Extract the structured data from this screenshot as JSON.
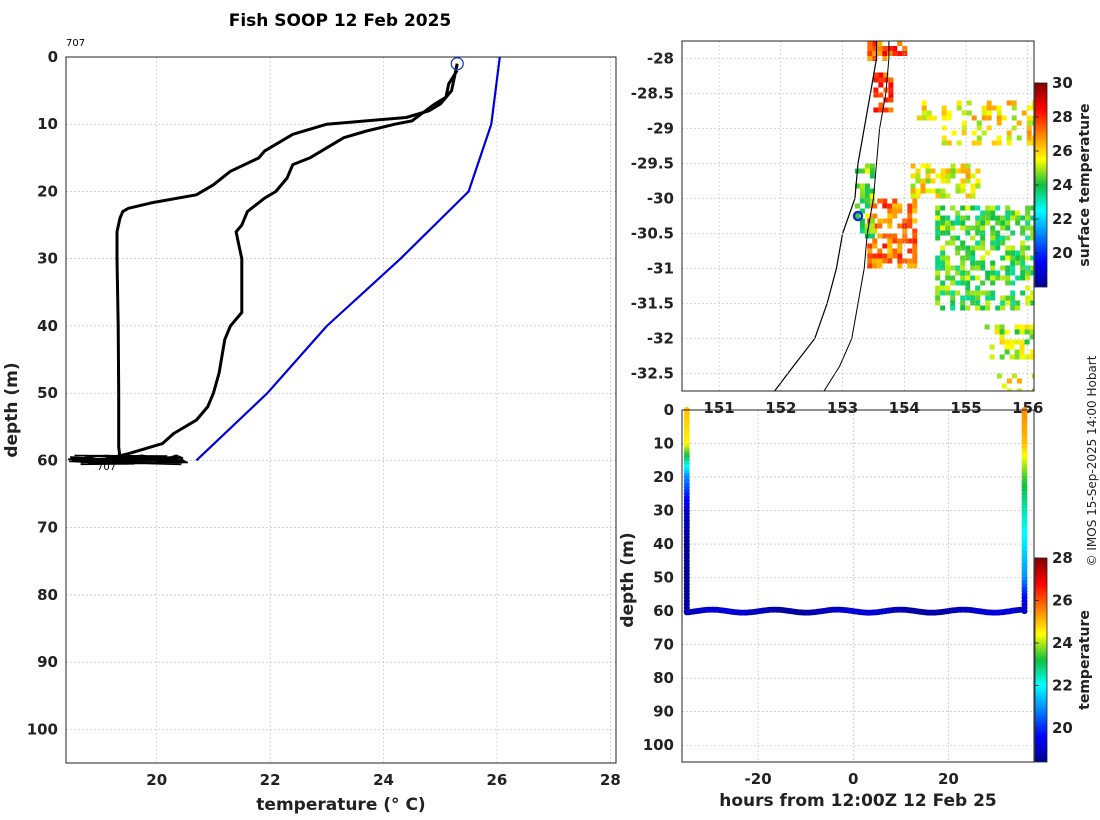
{
  "credit": "© IMOS 15-Sep-2025 14:00 Hobart",
  "colors": {
    "profile_black": "#000000",
    "profile_blue": "#0000dd",
    "marker_blue": "#1030d0"
  },
  "chart_data": [
    {
      "type": "line",
      "title": "Fish SOOP 12 Feb 2025",
      "xlabel": "temperature (° C)",
      "ylabel": "depth (m)",
      "xlim": [
        18.4,
        28.1
      ],
      "ylim": [
        105,
        0
      ],
      "x_ticks": [
        "20",
        "22",
        "24",
        "26",
        "28"
      ],
      "y_ticks": [
        "0",
        "10",
        "20",
        "30",
        "40",
        "50",
        "60",
        "70",
        "80",
        "90",
        "100"
      ],
      "annotations": [
        "707",
        "707"
      ],
      "grid": true,
      "marker": {
        "x": 25.3,
        "y": 1
      },
      "series": [
        {
          "color": "#000000",
          "points": [
            [
              25.3,
              1
            ],
            [
              25.25,
              3
            ],
            [
              25.2,
              5
            ],
            [
              25.0,
              7
            ],
            [
              24.8,
              8
            ],
            [
              24.4,
              9
            ],
            [
              23.0,
              10
            ],
            [
              22.4,
              11.5
            ],
            [
              21.9,
              14
            ],
            [
              21.8,
              15
            ],
            [
              21.3,
              17
            ],
            [
              21.0,
              19
            ],
            [
              20.7,
              20.5
            ],
            [
              19.9,
              21.7
            ],
            [
              19.5,
              22.5
            ],
            [
              19.4,
              23
            ],
            [
              19.35,
              24
            ],
            [
              19.3,
              26
            ],
            [
              19.3,
              30
            ],
            [
              19.32,
              40
            ],
            [
              19.33,
              50
            ],
            [
              19.33,
              58
            ],
            [
              19.35,
              59.5
            ]
          ]
        },
        {
          "color": "#000000",
          "points": [
            [
              25.3,
              2
            ],
            [
              25.15,
              4
            ],
            [
              25.1,
              6
            ],
            [
              24.9,
              7
            ],
            [
              24.5,
              9.5
            ],
            [
              24.2,
              10
            ],
            [
              23.7,
              11
            ],
            [
              23.3,
              12
            ],
            [
              22.7,
              15
            ],
            [
              22.4,
              16
            ],
            [
              22.3,
              18
            ],
            [
              22.1,
              20
            ],
            [
              21.9,
              21
            ],
            [
              21.75,
              22
            ],
            [
              21.6,
              23
            ],
            [
              21.5,
              25
            ],
            [
              21.4,
              26
            ],
            [
              21.45,
              28
            ],
            [
              21.5,
              30
            ],
            [
              21.5,
              38
            ],
            [
              21.3,
              40
            ],
            [
              21.2,
              42
            ],
            [
              21.1,
              47
            ],
            [
              21.0,
              50
            ],
            [
              20.9,
              52
            ],
            [
              20.7,
              54
            ],
            [
              20.3,
              56
            ],
            [
              20.1,
              57.5
            ],
            [
              19.5,
              59
            ],
            [
              19.1,
              59.8
            ],
            [
              18.5,
              60
            ]
          ]
        },
        {
          "color": "#0000dd",
          "points": [
            [
              26.05,
              0
            ],
            [
              25.9,
              10
            ],
            [
              25.5,
              20
            ],
            [
              24.3,
              30
            ],
            [
              23.0,
              40
            ],
            [
              21.95,
              50
            ],
            [
              20.7,
              60
            ]
          ]
        }
      ]
    },
    {
      "type": "heatmap",
      "colorbar_label": "surface temperature",
      "xlim": [
        150.4,
        156.1
      ],
      "ylim": [
        -32.75,
        -27.75
      ],
      "x_ticks": [
        "151",
        "152",
        "153",
        "154",
        "155",
        "156"
      ],
      "y_ticks": [
        "-28",
        "-28.5",
        "-29",
        "-29.5",
        "-30",
        "-30.5",
        "-31",
        "-31.5",
        "-32",
        "-32.5"
      ],
      "clim": [
        18,
        30
      ],
      "colorbar_ticks": [
        "20",
        "22",
        "24",
        "26",
        "28",
        "30"
      ],
      "grid": true,
      "marker": {
        "lon": 153.25,
        "lat": -30.25
      }
    },
    {
      "type": "scatter",
      "xlabel": "hours from 12:00Z 12 Feb 25",
      "ylabel": "depth (m)",
      "xlim": [
        -36,
        38
      ],
      "ylim": [
        105,
        0
      ],
      "x_ticks": [
        "-20",
        "0",
        "20"
      ],
      "y_ticks": [
        "0",
        "10",
        "20",
        "30",
        "40",
        "50",
        "60",
        "70",
        "80",
        "90",
        "100"
      ],
      "colorbar_label": "temperature",
      "clim": [
        18.4,
        28
      ],
      "colorbar_ticks": [
        "20",
        "22",
        "24",
        "26",
        "28"
      ],
      "grid": true,
      "profile_temperatures": {
        "depths": [
          0,
          10,
          20,
          30,
          40,
          50,
          60
        ],
        "left": [
          25,
          24.5,
          21,
          19,
          18.5,
          18.5,
          18.6
        ],
        "right": [
          25.5,
          25,
          23.5,
          22.5,
          21.8,
          21,
          18.8
        ]
      },
      "bottom_track": {
        "start": -35,
        "end": 36,
        "depth": 60
      }
    }
  ]
}
